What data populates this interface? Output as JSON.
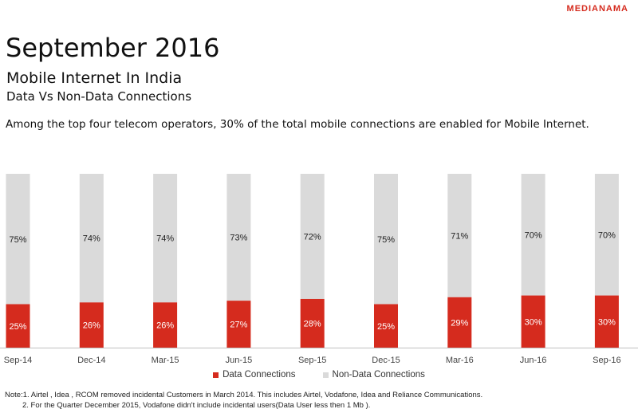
{
  "brand": "MEDIANAMA",
  "title": "September 2016",
  "subtitle": "Mobile Internet In India",
  "subtitle2": "Data Vs Non-Data Connections",
  "lead": "Among the top four telecom operators, 30% of the total mobile connections are enabled for Mobile Internet.",
  "colors": {
    "data": "#d52b1e",
    "non_data": "#dadada",
    "brand": "#d52b1e"
  },
  "chart_data": {
    "type": "bar",
    "stacked": true,
    "percent_stacked": true,
    "categories": [
      "Sep-14",
      "Dec-14",
      "Mar-15",
      "Jun-15",
      "Sep-15",
      "Dec-15",
      "Mar-16",
      "Jun-16",
      "Sep-16"
    ],
    "series": [
      {
        "name": "Data Connections",
        "values": [
          25,
          26,
          26,
          27,
          28,
          25,
          29,
          30,
          30
        ],
        "labels": [
          "25%",
          "26%",
          "26%",
          "27%",
          "28%",
          "25%",
          "29%",
          "30%",
          "30%"
        ]
      },
      {
        "name": "Non-Data Connections",
        "values": [
          75,
          74,
          74,
          73,
          72,
          75,
          71,
          70,
          70
        ],
        "labels": [
          "75%",
          "74%",
          "74%",
          "73%",
          "72%",
          "75%",
          "71%",
          "70%",
          "70%"
        ]
      }
    ],
    "ylim": [
      0,
      100
    ],
    "grid": false,
    "legend": "bottom-center"
  },
  "notes": [
    "Note:1. Airtel , Idea , RCOM removed incidental Customers in March 2014. This includes Airtel, Vodafone, Idea and Reliance Communications.",
    "2. For the Quarter December 2015, Vodafone didn't include incidental users(Data User less then 1 Mb )."
  ]
}
